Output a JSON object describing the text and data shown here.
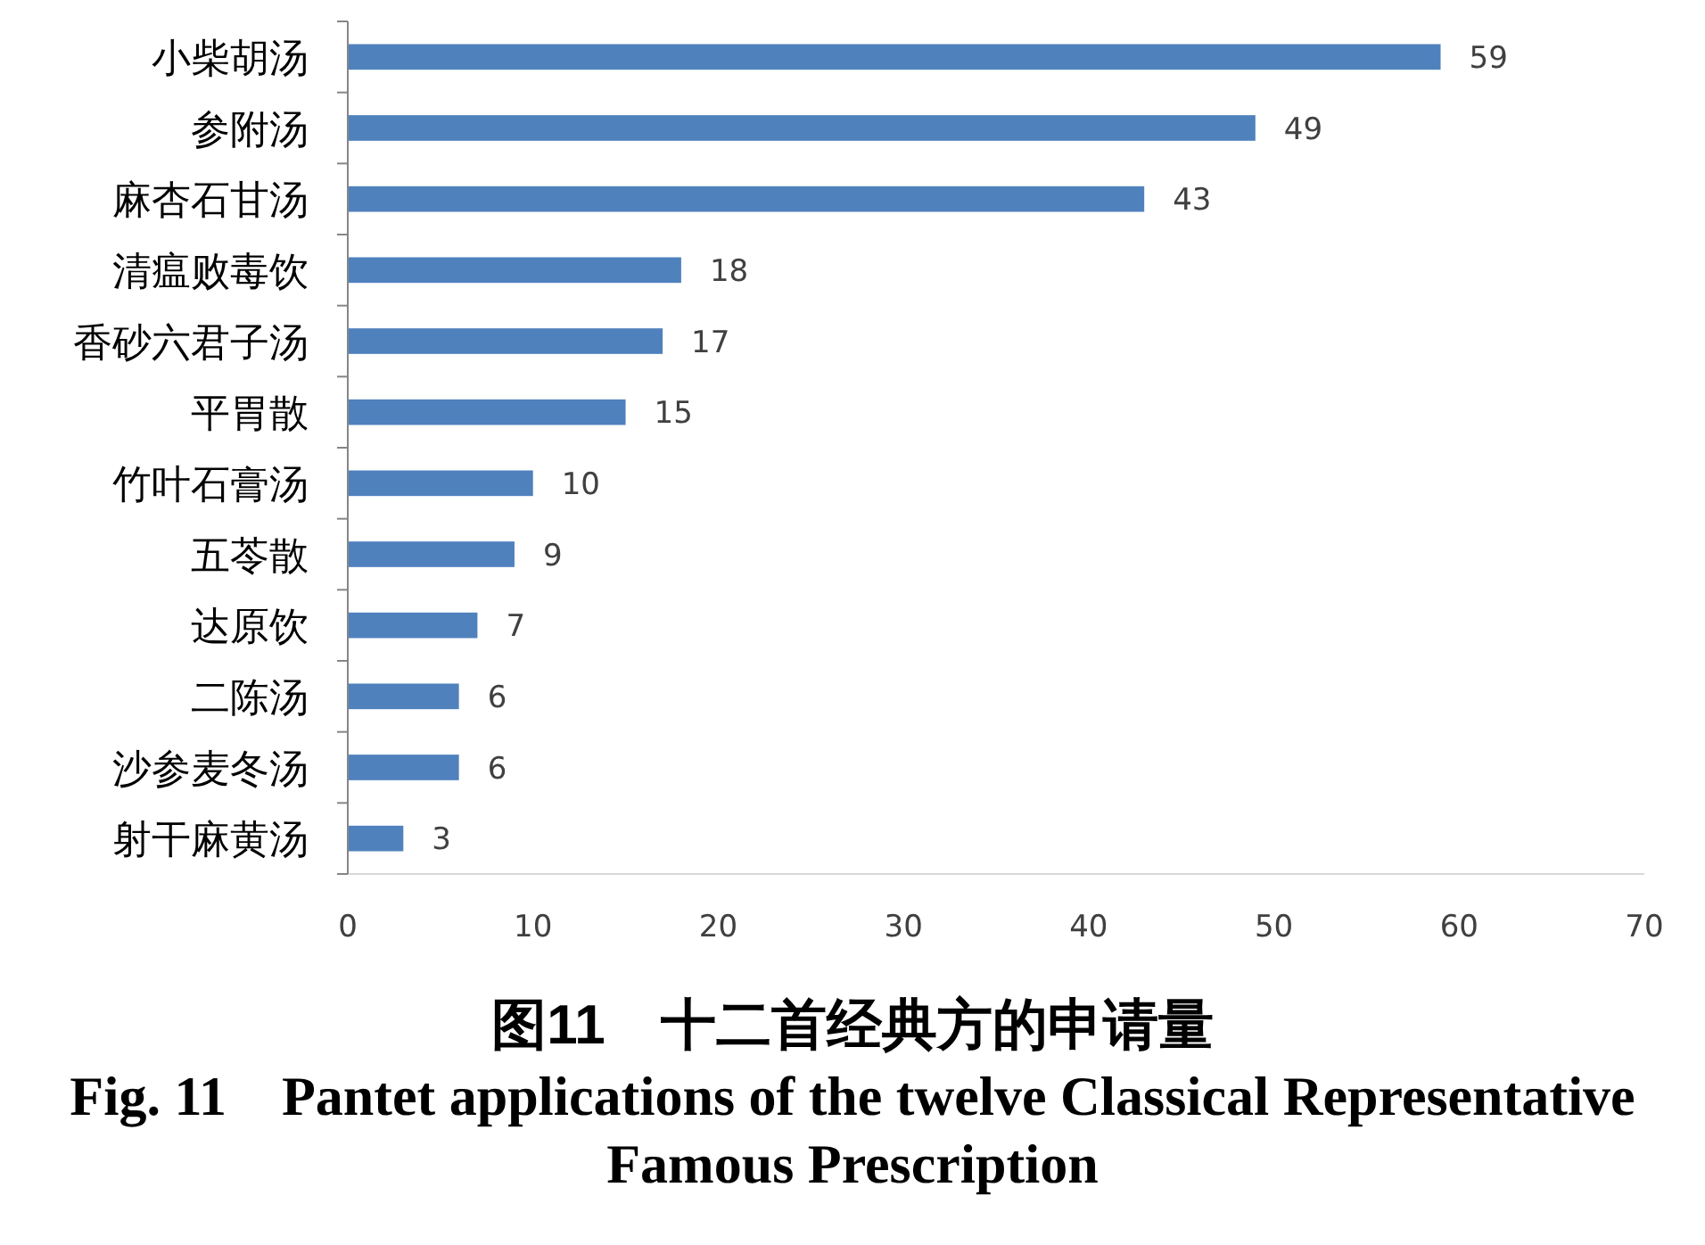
{
  "chart_data": {
    "type": "bar",
    "orientation": "horizontal",
    "categories": [
      "小柴胡汤",
      "参附汤",
      "麻杏石甘汤",
      "清瘟败毒饮",
      "香砂六君子汤",
      "平胃散",
      "竹叶石膏汤",
      "五苓散",
      "达原饮",
      "二陈汤",
      "沙参麦冬汤",
      "射干麻黄汤"
    ],
    "values": [
      59,
      49,
      43,
      18,
      17,
      15,
      10,
      9,
      7,
      6,
      6,
      3
    ],
    "color": "#4f81bd",
    "xlim": [
      0,
      70
    ],
    "xticks": [
      0,
      10,
      20,
      30,
      40,
      50,
      60,
      70
    ],
    "data_labels": true,
    "grid": false,
    "annotations": [
      "图11　十二首经典方的申请量",
      "Fig. 11　Pantet applications of the twelve Classical Representative Famous Prescription"
    ]
  }
}
